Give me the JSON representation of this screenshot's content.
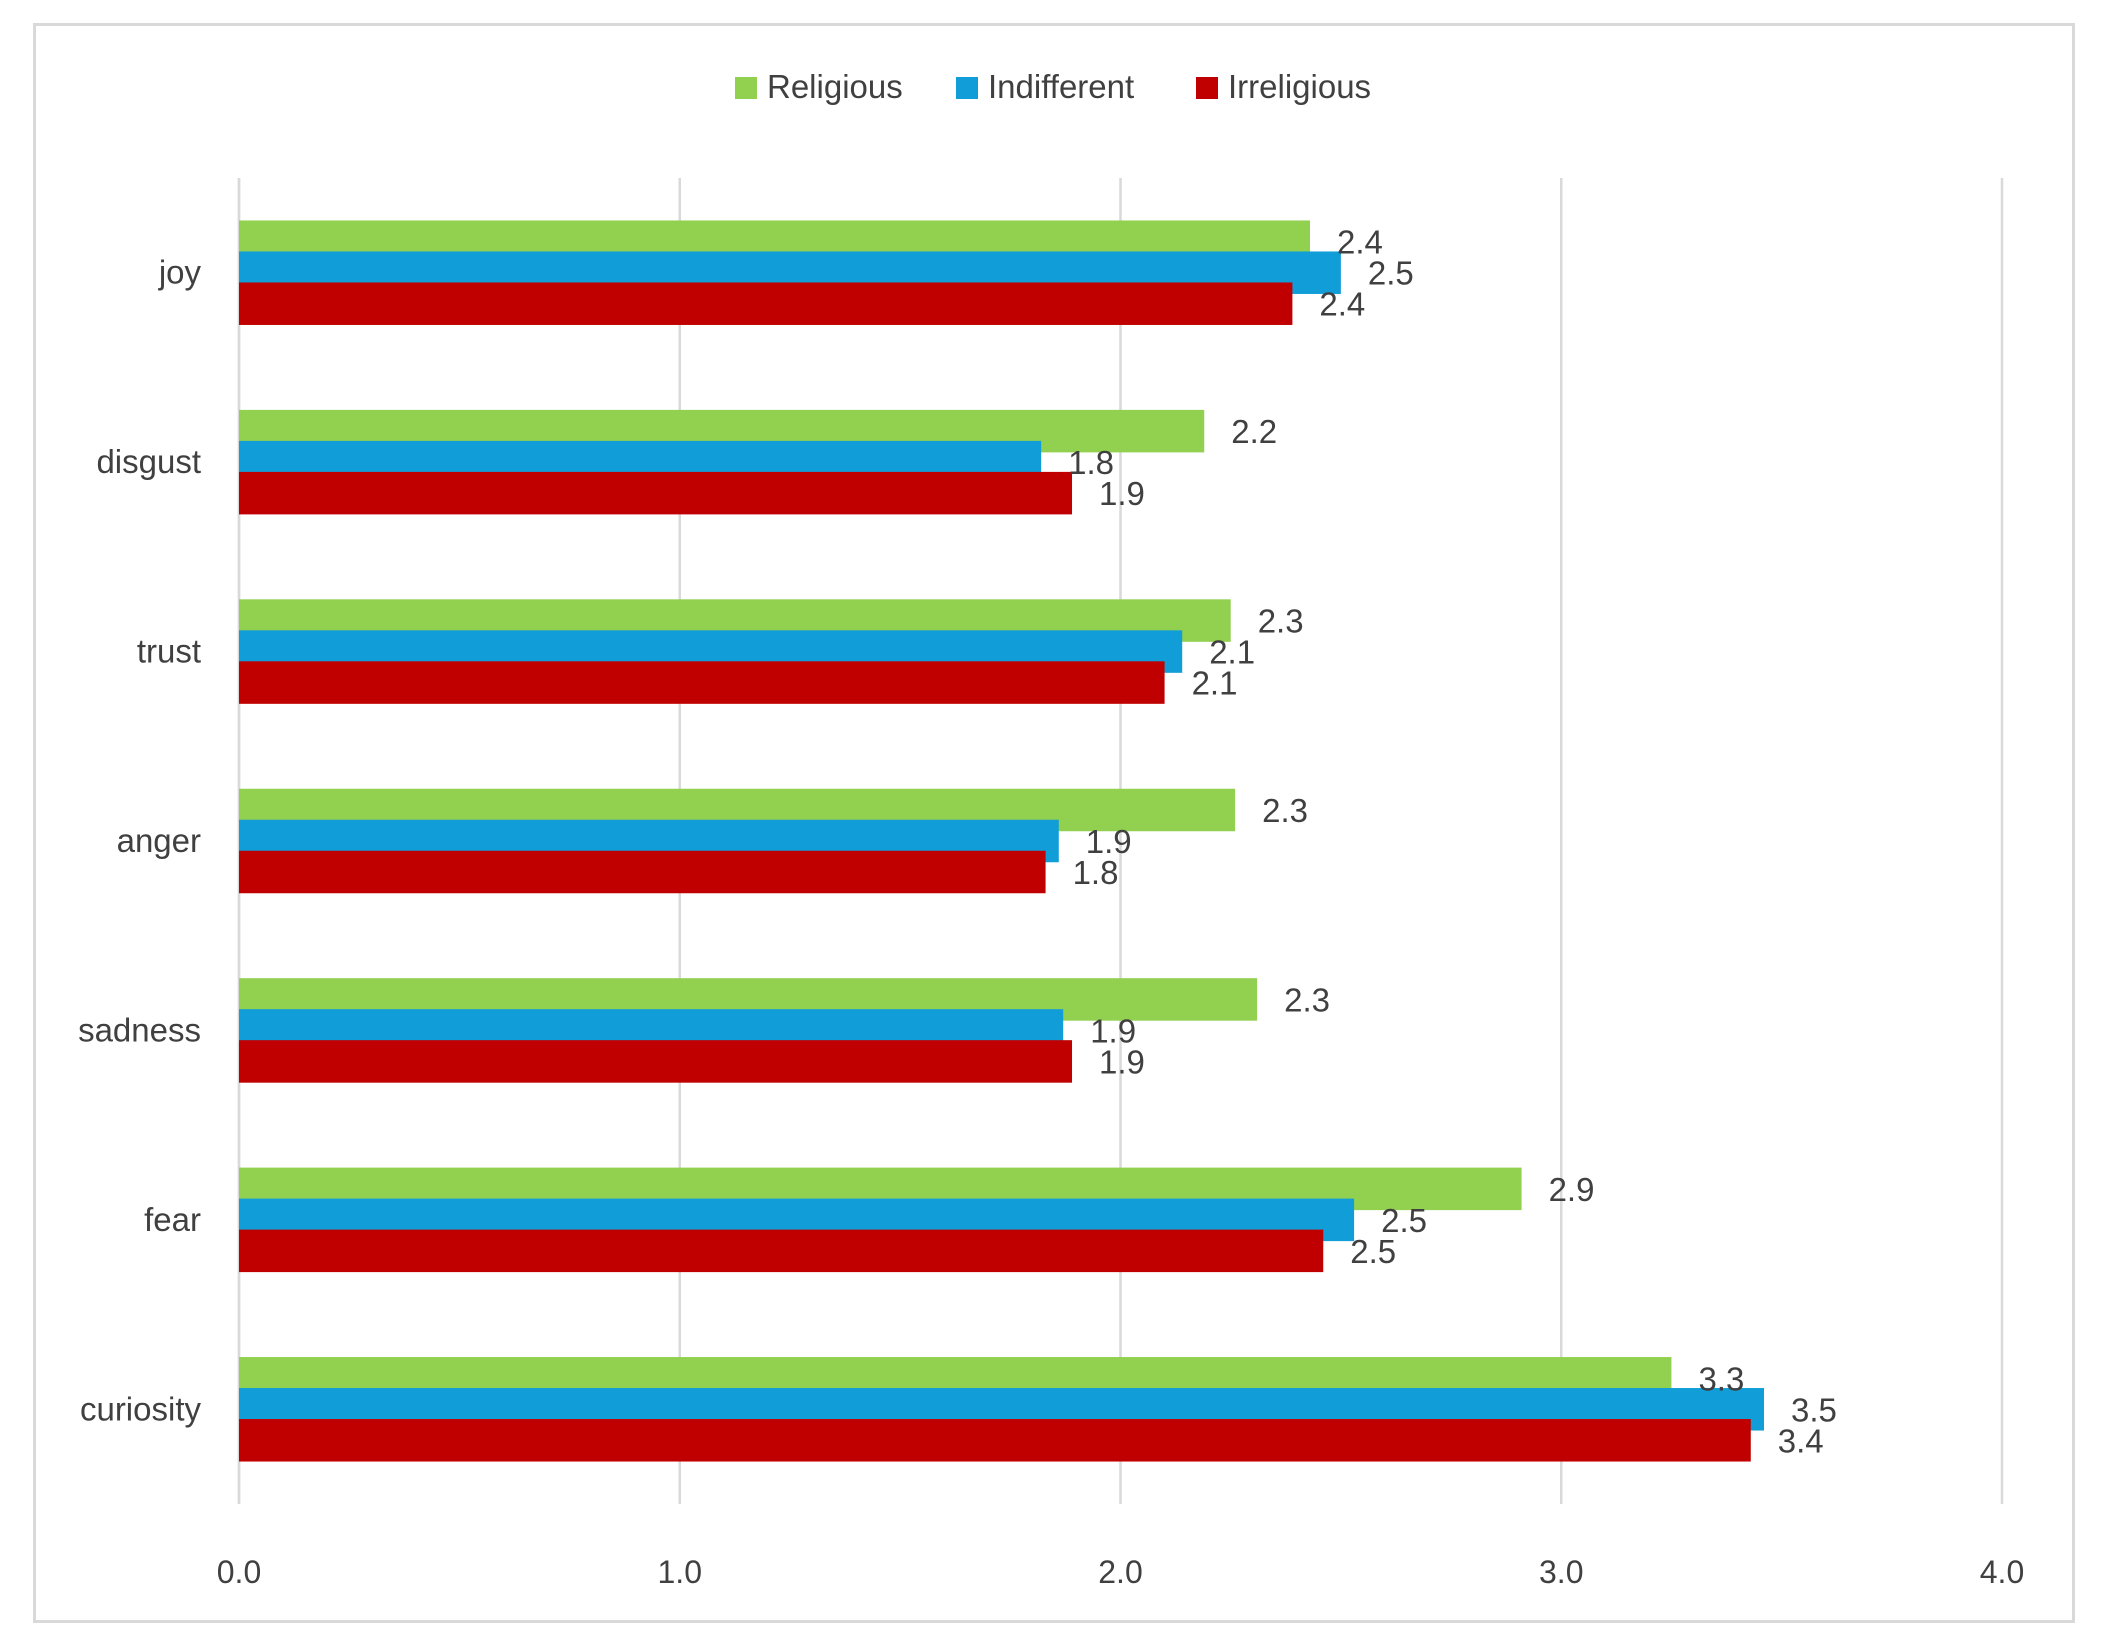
{
  "chart_data": {
    "type": "bar",
    "orientation": "horizontal",
    "categories": [
      "joy",
      "disgust",
      "trust",
      "anger",
      "sadness",
      "fear",
      "curiosity"
    ],
    "series": [
      {
        "name": "Religious",
        "color": "#92d050",
        "values": [
          2.43,
          2.19,
          2.25,
          2.26,
          2.31,
          2.91,
          3.25
        ],
        "labels": [
          "2.4",
          "2.2",
          "2.3",
          "2.3",
          "2.3",
          "2.9",
          "3.3"
        ]
      },
      {
        "name": "Indifferent",
        "color": "#119dd8",
        "values": [
          2.5,
          1.82,
          2.14,
          1.86,
          1.87,
          2.53,
          3.46
        ],
        "labels": [
          "2.5",
          "1.8",
          "2.1",
          "1.9",
          "1.9",
          "2.5",
          "3.5"
        ]
      },
      {
        "name": "Irreligious",
        "color": "#c00000",
        "values": [
          2.39,
          1.89,
          2.1,
          1.83,
          1.89,
          2.46,
          3.43
        ],
        "labels": [
          "2.4",
          "1.9",
          "2.1",
          "1.8",
          "1.9",
          "2.5",
          "3.4"
        ]
      }
    ],
    "xlim": [
      0,
      4
    ],
    "xticks": [
      "0.0",
      "1.0",
      "2.0",
      "3.0",
      "4.0"
    ],
    "grid": true,
    "legend_position": "top-center",
    "title": "",
    "xlabel": "",
    "ylabel": ""
  }
}
